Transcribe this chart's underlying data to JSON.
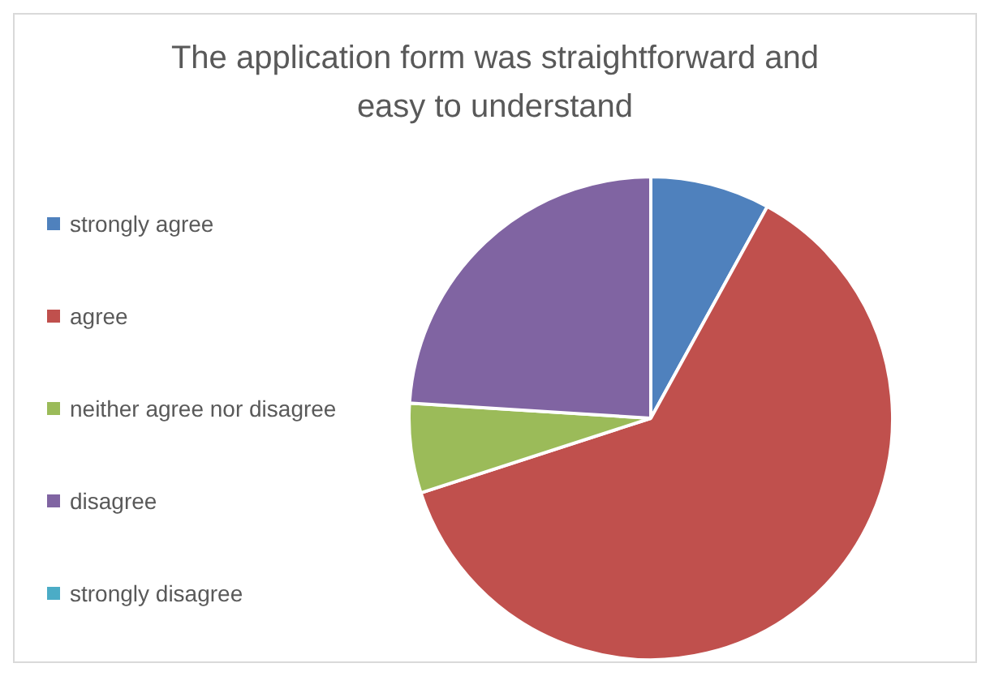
{
  "chart_data": {
    "type": "pie",
    "title": "The application form was straightforward and easy to understand",
    "categories": [
      "strongly agree",
      "agree",
      "neither agree nor disagree",
      "disagree",
      "strongly disagree"
    ],
    "values": [
      8,
      62,
      6,
      24,
      0
    ],
    "colors": [
      "#4f81bd",
      "#c0504d",
      "#9bbb59",
      "#8064a2",
      "#4bacc6"
    ],
    "legend": "left"
  }
}
